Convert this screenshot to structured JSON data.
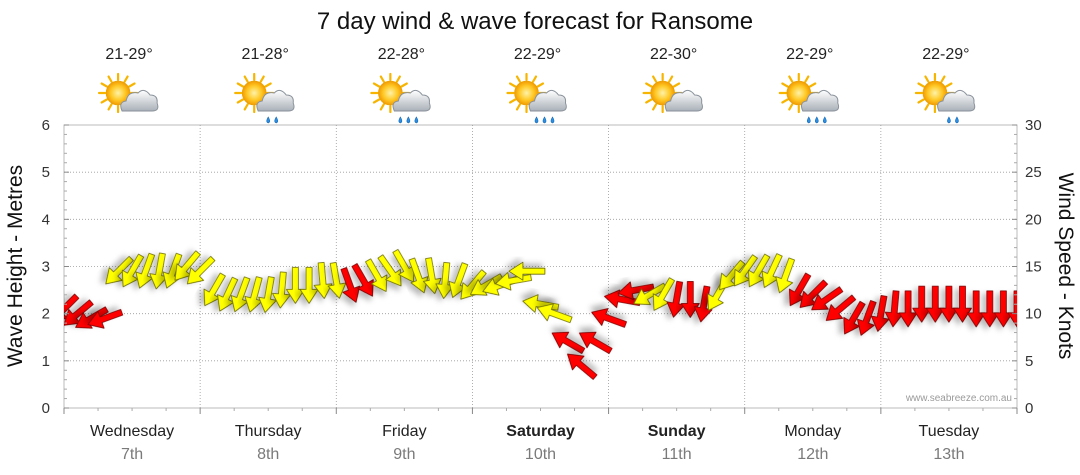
{
  "chart_data": {
    "type": "line",
    "title": "7 day wind & wave forecast for Ransome",
    "ylabel": "Wave Height - Metres",
    "y2label": "Wind Speed - Knots",
    "ylim": [
      0,
      6
    ],
    "y2lim": [
      0,
      30
    ],
    "yticks": [
      "0",
      "1",
      "2",
      "3",
      "4",
      "5",
      "6"
    ],
    "y2ticks": [
      "0",
      "5",
      "10",
      "15",
      "20",
      "25",
      "30"
    ],
    "grid": true,
    "credit": "www.seabreeze.com.au",
    "days": [
      {
        "name": "Wednesday",
        "date": "7th",
        "bold": false,
        "temp": "21-29°",
        "icon": "partly-cloudy-icon"
      },
      {
        "name": "Thursday",
        "date": "8th",
        "bold": false,
        "temp": "21-28°",
        "icon": "light-rain-icon"
      },
      {
        "name": "Friday",
        "date": "9th",
        "bold": false,
        "temp": "22-28°",
        "icon": "showers-icon"
      },
      {
        "name": "Saturday",
        "date": "10th",
        "bold": true,
        "temp": "22-29°",
        "icon": "showers-icon"
      },
      {
        "name": "Sunday",
        "date": "11th",
        "bold": true,
        "temp": "22-30°",
        "icon": "partly-cloudy-icon"
      },
      {
        "name": "Monday",
        "date": "12th",
        "bold": false,
        "temp": "22-29°",
        "icon": "showers-icon"
      },
      {
        "name": "Tuesday",
        "date": "13th",
        "bold": false,
        "temp": "22-29°",
        "icon": "light-rain-icon"
      }
    ],
    "series": [
      {
        "name": "Wind speed (knots)",
        "unit": "knots",
        "x_days": [
          0.0,
          0.1,
          0.2,
          0.3,
          0.4,
          0.5,
          0.6,
          0.7,
          0.8,
          0.9,
          1.0,
          1.1,
          1.2,
          1.3,
          1.4,
          1.5,
          1.6,
          1.7,
          1.8,
          1.9,
          2.0,
          2.1,
          2.2,
          2.3,
          2.4,
          2.5,
          2.6,
          2.7,
          2.8,
          2.9,
          3.0,
          3.1,
          3.2,
          3.3,
          3.4,
          3.5,
          3.6,
          3.7,
          3.8,
          3.9,
          4.0,
          4.1,
          4.2,
          4.3,
          4.4,
          4.5,
          4.6,
          4.7,
          4.8,
          4.9,
          5.0,
          5.1,
          5.2,
          5.3,
          5.4,
          5.5,
          5.6,
          5.7,
          5.8,
          5.9,
          6.0,
          6.1,
          6.2,
          6.3,
          6.4,
          6.5,
          6.6,
          6.7,
          6.8,
          6.9,
          7.0
        ],
        "values": [
          10.5,
          10.0,
          9.5,
          9.5,
          14.5,
          14.5,
          14.5,
          14.5,
          14.5,
          15.0,
          14.5,
          12.5,
          12.0,
          12.0,
          12.0,
          12.0,
          12.5,
          13.0,
          13.0,
          13.5,
          13.5,
          13.0,
          13.5,
          14.0,
          14.5,
          15.0,
          14.0,
          14.0,
          13.5,
          13.5,
          13.0,
          13.0,
          13.0,
          13.5,
          14.5,
          11.0,
          10.0,
          7.0,
          4.5,
          7.0,
          9.5,
          11.5,
          12.5,
          12.0,
          12.0,
          11.5,
          11.5,
          11.0,
          12.0,
          14.0,
          14.5,
          14.5,
          14.5,
          14.0,
          12.5,
          12.0,
          11.5,
          10.5,
          9.5,
          9.5,
          10.0,
          10.5,
          10.5,
          11.0,
          11.0,
          11.0,
          11.0,
          10.5,
          10.5,
          10.5,
          10.5
        ],
        "strength": [
          "strong",
          "strong",
          "strong",
          "strong",
          "light",
          "light",
          "light",
          "light",
          "light",
          "light",
          "light",
          "light",
          "light",
          "light",
          "light",
          "light",
          "light",
          "light",
          "light",
          "light",
          "light",
          "strong",
          "strong",
          "light",
          "light",
          "light",
          "light",
          "light",
          "light",
          "light",
          "light",
          "light",
          "light",
          "light",
          "light",
          "light",
          "light",
          "strong",
          "strong",
          "strong",
          "strong",
          "strong",
          "strong",
          "light",
          "light",
          "strong",
          "strong",
          "strong",
          "light",
          "light",
          "light",
          "light",
          "light",
          "light",
          "strong",
          "strong",
          "strong",
          "strong",
          "strong",
          "strong",
          "strong",
          "strong",
          "strong",
          "strong",
          "strong",
          "strong",
          "strong",
          "strong",
          "strong",
          "strong",
          "strong"
        ],
        "direction_deg": [
          135,
          140,
          150,
          160,
          135,
          120,
          110,
          100,
          110,
          130,
          135,
          120,
          115,
          110,
          105,
          100,
          95,
          90,
          90,
          85,
          80,
          70,
          60,
          60,
          55,
          60,
          70,
          80,
          95,
          110,
          130,
          150,
          160,
          170,
          180,
          190,
          200,
          210,
          220,
          210,
          200,
          190,
          170,
          150,
          120,
          100,
          90,
          100,
          120,
          130,
          125,
          120,
          115,
          110,
          120,
          135,
          145,
          140,
          120,
          110,
          100,
          95,
          90,
          90,
          90,
          90,
          90,
          90,
          90,
          90,
          90
        ]
      }
    ]
  }
}
